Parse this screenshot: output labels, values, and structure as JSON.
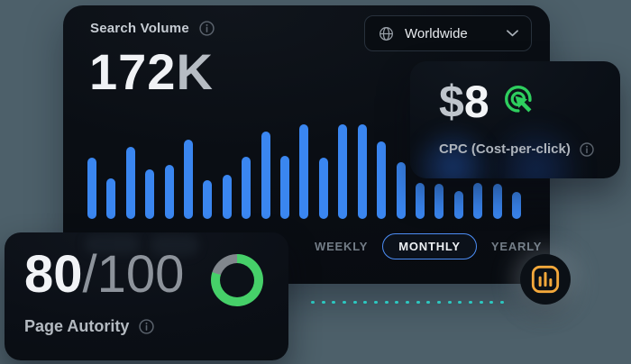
{
  "colors": {
    "background": "#4D606A",
    "card_bg": "#0B1018",
    "bar_blue": "#3A86F0",
    "tab_active_border": "#4C8DF5",
    "donut_green": "#46D069",
    "donut_track": "#81878D",
    "click_green": "#2ECE5E",
    "fab_amber": "#F3A83B",
    "dash_teal": "#2CC8C1"
  },
  "search_volume_card": {
    "title": "Search Volume",
    "value_number": "172",
    "value_suffix": "K",
    "region_selector": {
      "value": "Worldwide",
      "globe_icon": "globe-icon",
      "chevron_icon": "chevron-down-icon"
    },
    "tabs": [
      {
        "label": "WEEKLY",
        "active": false
      },
      {
        "label": "MONTHLY",
        "active": true
      },
      {
        "label": "YEARLY",
        "active": false
      }
    ]
  },
  "chart_data": {
    "type": "bar",
    "title": "Search Volume",
    "selected_period": "MONTHLY",
    "x_labels_visible": false,
    "unit": "relative search volume (estimated from bar heights, px)",
    "values": [
      68,
      45,
      80,
      55,
      60,
      88,
      43,
      49,
      69,
      97,
      70,
      105,
      68,
      105,
      105,
      86,
      63,
      40,
      39,
      31,
      40,
      39,
      30
    ],
    "bar_color": "#3A86F0"
  },
  "cpc_card": {
    "currency": "$",
    "amount": "8",
    "label": "CPC (Cost-per-click)",
    "click_icon": "click-cursor-icon",
    "info_icon": "info-icon"
  },
  "page_authority_card": {
    "score": "80",
    "max": "/100",
    "donut_percent": 80,
    "label": "Page Autority",
    "info_icon": "info-icon"
  },
  "fab": {
    "icon": "bar-chart-icon"
  },
  "decor": {
    "dash_count": 19
  }
}
